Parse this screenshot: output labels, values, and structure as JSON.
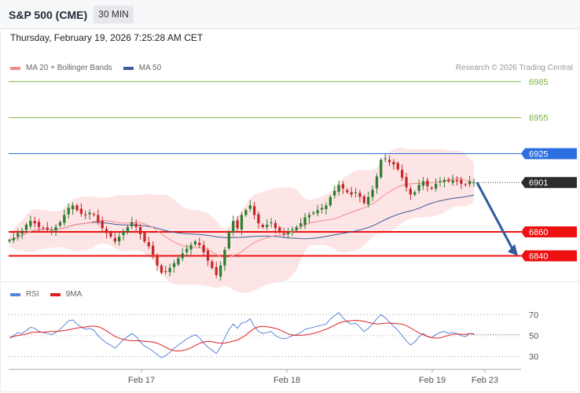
{
  "header": {
    "symbol": "S&P 500 (CME)",
    "timeframe": "30 MIN",
    "datetime": "Thursday, February 19, 2026 7:25:28 AM CET"
  },
  "legend": {
    "ma20_label": "MA 20 + Bollinger Bands",
    "ma50_label": "MA 50",
    "copyright": "Research © 2026 Trading Central",
    "rsi_label": "RSI",
    "rsi_ma_label": "9MA"
  },
  "colors": {
    "up": "#2e7d32",
    "down": "#c62828",
    "ma20": "#f28b8b",
    "ma50": "#3f5b9a",
    "bollinger": "#fde0e0",
    "target": "#7cb342",
    "pivot_blue": "#2d6fe0",
    "support": "#ee1111",
    "rsi": "#5b85d9",
    "rsi_ma": "#e02020"
  },
  "chart_data": [
    {
      "type": "candlestick",
      "instrument": "S&P 500 (CME)",
      "interval": "30 MIN",
      "ylim": [
        6824,
        6994
      ],
      "x_ticks": [
        "Feb 17",
        "Feb 18",
        "Feb 19",
        "Feb 23"
      ],
      "last_price": 6901,
      "levels": [
        {
          "value": 6985,
          "label": "6985",
          "kind": "target"
        },
        {
          "value": 6955,
          "label": "6955",
          "kind": "target"
        },
        {
          "value": 6925,
          "label": "6925",
          "kind": "pivot"
        },
        {
          "value": 6901,
          "label": "6901",
          "kind": "last"
        },
        {
          "value": 6860,
          "label": "6860",
          "kind": "support"
        },
        {
          "value": 6840,
          "label": "6840",
          "kind": "support"
        }
      ],
      "scenario_arrow": {
        "from": 6901,
        "to": 6840
      },
      "close": [
        6853,
        6855,
        6859,
        6861,
        6866,
        6869,
        6867,
        6864,
        6863,
        6862,
        6861,
        6864,
        6868,
        6874,
        6880,
        6882,
        6878,
        6875,
        6874,
        6876,
        6874,
        6868,
        6863,
        6859,
        6856,
        6852,
        6856,
        6860,
        6864,
        6868,
        6864,
        6858,
        6852,
        6848,
        6841,
        6832,
        6826,
        6827,
        6830,
        6834,
        6838,
        6842,
        6846,
        6849,
        6852,
        6849,
        6843,
        6836,
        6830,
        6824,
        6832,
        6845,
        6860,
        6869,
        6863,
        6874,
        6878,
        6882,
        6874,
        6867,
        6864,
        6866,
        6868,
        6863,
        6860,
        6858,
        6860,
        6862,
        6864,
        6867,
        6872,
        6874,
        6876,
        6878,
        6880,
        6882,
        6889,
        6894,
        6899,
        6896,
        6893,
        6891,
        6893,
        6889,
        6884,
        6889,
        6895,
        6906,
        6920,
        6921,
        6918,
        6916,
        6912,
        6905,
        6897,
        6891,
        6893,
        6899,
        6902,
        6898,
        6896,
        6900,
        6902,
        6903,
        6902,
        6903,
        6902,
        6900,
        6899,
        6902,
        6901
      ]
    },
    {
      "type": "line",
      "name": "RSI",
      "ylim": [
        20,
        80
      ],
      "y_ticks": [
        70,
        50,
        30
      ],
      "rsi_ma_name": "9MA",
      "values": [
        48,
        50,
        53,
        52,
        55,
        58,
        57,
        54,
        53,
        52,
        51,
        53,
        56,
        60,
        64,
        65,
        61,
        58,
        56,
        57,
        55,
        50,
        46,
        43,
        41,
        38,
        42,
        46,
        49,
        52,
        49,
        44,
        40,
        38,
        35,
        32,
        29,
        31,
        34,
        38,
        41,
        44,
        47,
        49,
        51,
        48,
        43,
        39,
        36,
        33,
        39,
        48,
        56,
        61,
        57,
        62,
        63,
        66,
        59,
        54,
        52,
        53,
        54,
        50,
        48,
        47,
        48,
        50,
        51,
        53,
        56,
        57,
        58,
        59,
        60,
        61,
        66,
        69,
        72,
        67,
        63,
        61,
        62,
        58,
        54,
        57,
        61,
        66,
        70,
        67,
        63,
        59,
        55,
        50,
        45,
        41,
        44,
        49,
        52,
        49,
        48,
        51,
        53,
        54,
        52,
        53,
        52,
        50,
        49,
        52,
        51
      ]
    }
  ]
}
